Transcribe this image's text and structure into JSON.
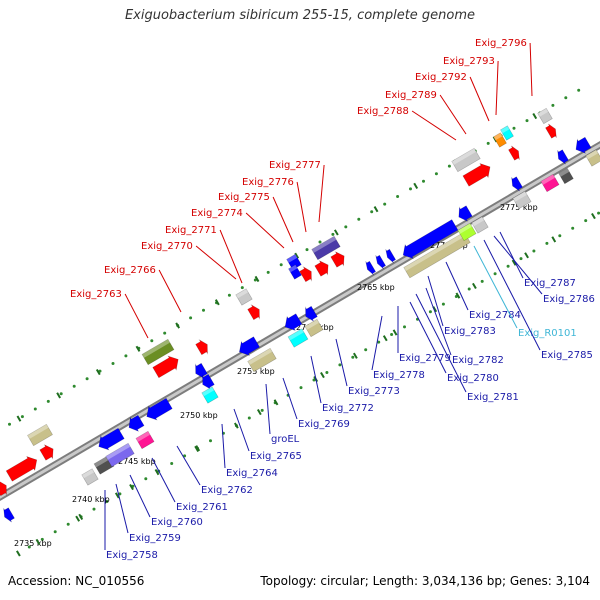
{
  "title": "Exiguobacterium sibiricum 255-15, complete genome",
  "accession": "Accession: NC_010556",
  "summary": "Topology: circular; Length: 3,034,136 bp; Genes: 3,104",
  "colors": {
    "backbone": "#9a9a9a",
    "forward_label": "#d40000",
    "reverse_label": "#1a1aa8",
    "rna_label": "#3fb6d6",
    "dots": "#2f8a2f",
    "ticks": "#1f6e1f"
  },
  "scale_labels": [
    "2735 kbp",
    "2740 kbp",
    "2745 kbp",
    "2750 kbp",
    "2755 kbp",
    "2760 kbp",
    "2765 kbp",
    "2770 kbp",
    "2775 kbp"
  ],
  "forward_labels": [
    "Exig_2763",
    "Exig_2766",
    "Exig_2770",
    "Exig_2771",
    "Exig_2774",
    "Exig_2775",
    "Exig_2776",
    "Exig_2777",
    "Exig_2788",
    "Exig_2789",
    "Exig_2792",
    "Exig_2793",
    "Exig_2796"
  ],
  "reverse_labels": [
    "Exig_2758",
    "Exig_2759",
    "Exig_2760",
    "Exig_2761",
    "Exig_2762",
    "Exig_2764",
    "Exig_2765",
    "groEL",
    "Exig_2769",
    "Exig_2772",
    "Exig_2773",
    "Exig_2778",
    "Exig_2779",
    "Exig_2780",
    "Exig_2781",
    "Exig_2782",
    "Exig_2783",
    "Exig_2784",
    "Exig_R0101",
    "Exig_2785",
    "Exig_2786",
    "Exig_2787"
  ]
}
